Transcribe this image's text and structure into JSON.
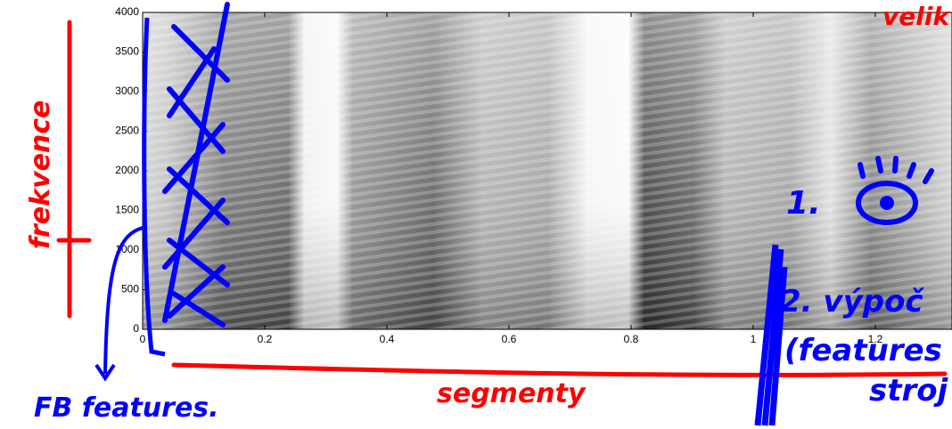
{
  "y_axis": {
    "ticks": [
      0,
      500,
      1000,
      1500,
      2000,
      2500,
      3000,
      3500,
      4000
    ]
  },
  "x_axis": {
    "ticks": [
      0,
      0.2,
      0.4,
      0.6,
      0.8,
      1,
      1.2
    ]
  },
  "annotations": {
    "frequency": "frekvence",
    "segments": "segmenty",
    "fb_features": "FB features.",
    "step_1": "1.",
    "step_2": "2. výpoč",
    "features": "(features",
    "top_right": "velik",
    "bottom_right": "stroj"
  }
}
